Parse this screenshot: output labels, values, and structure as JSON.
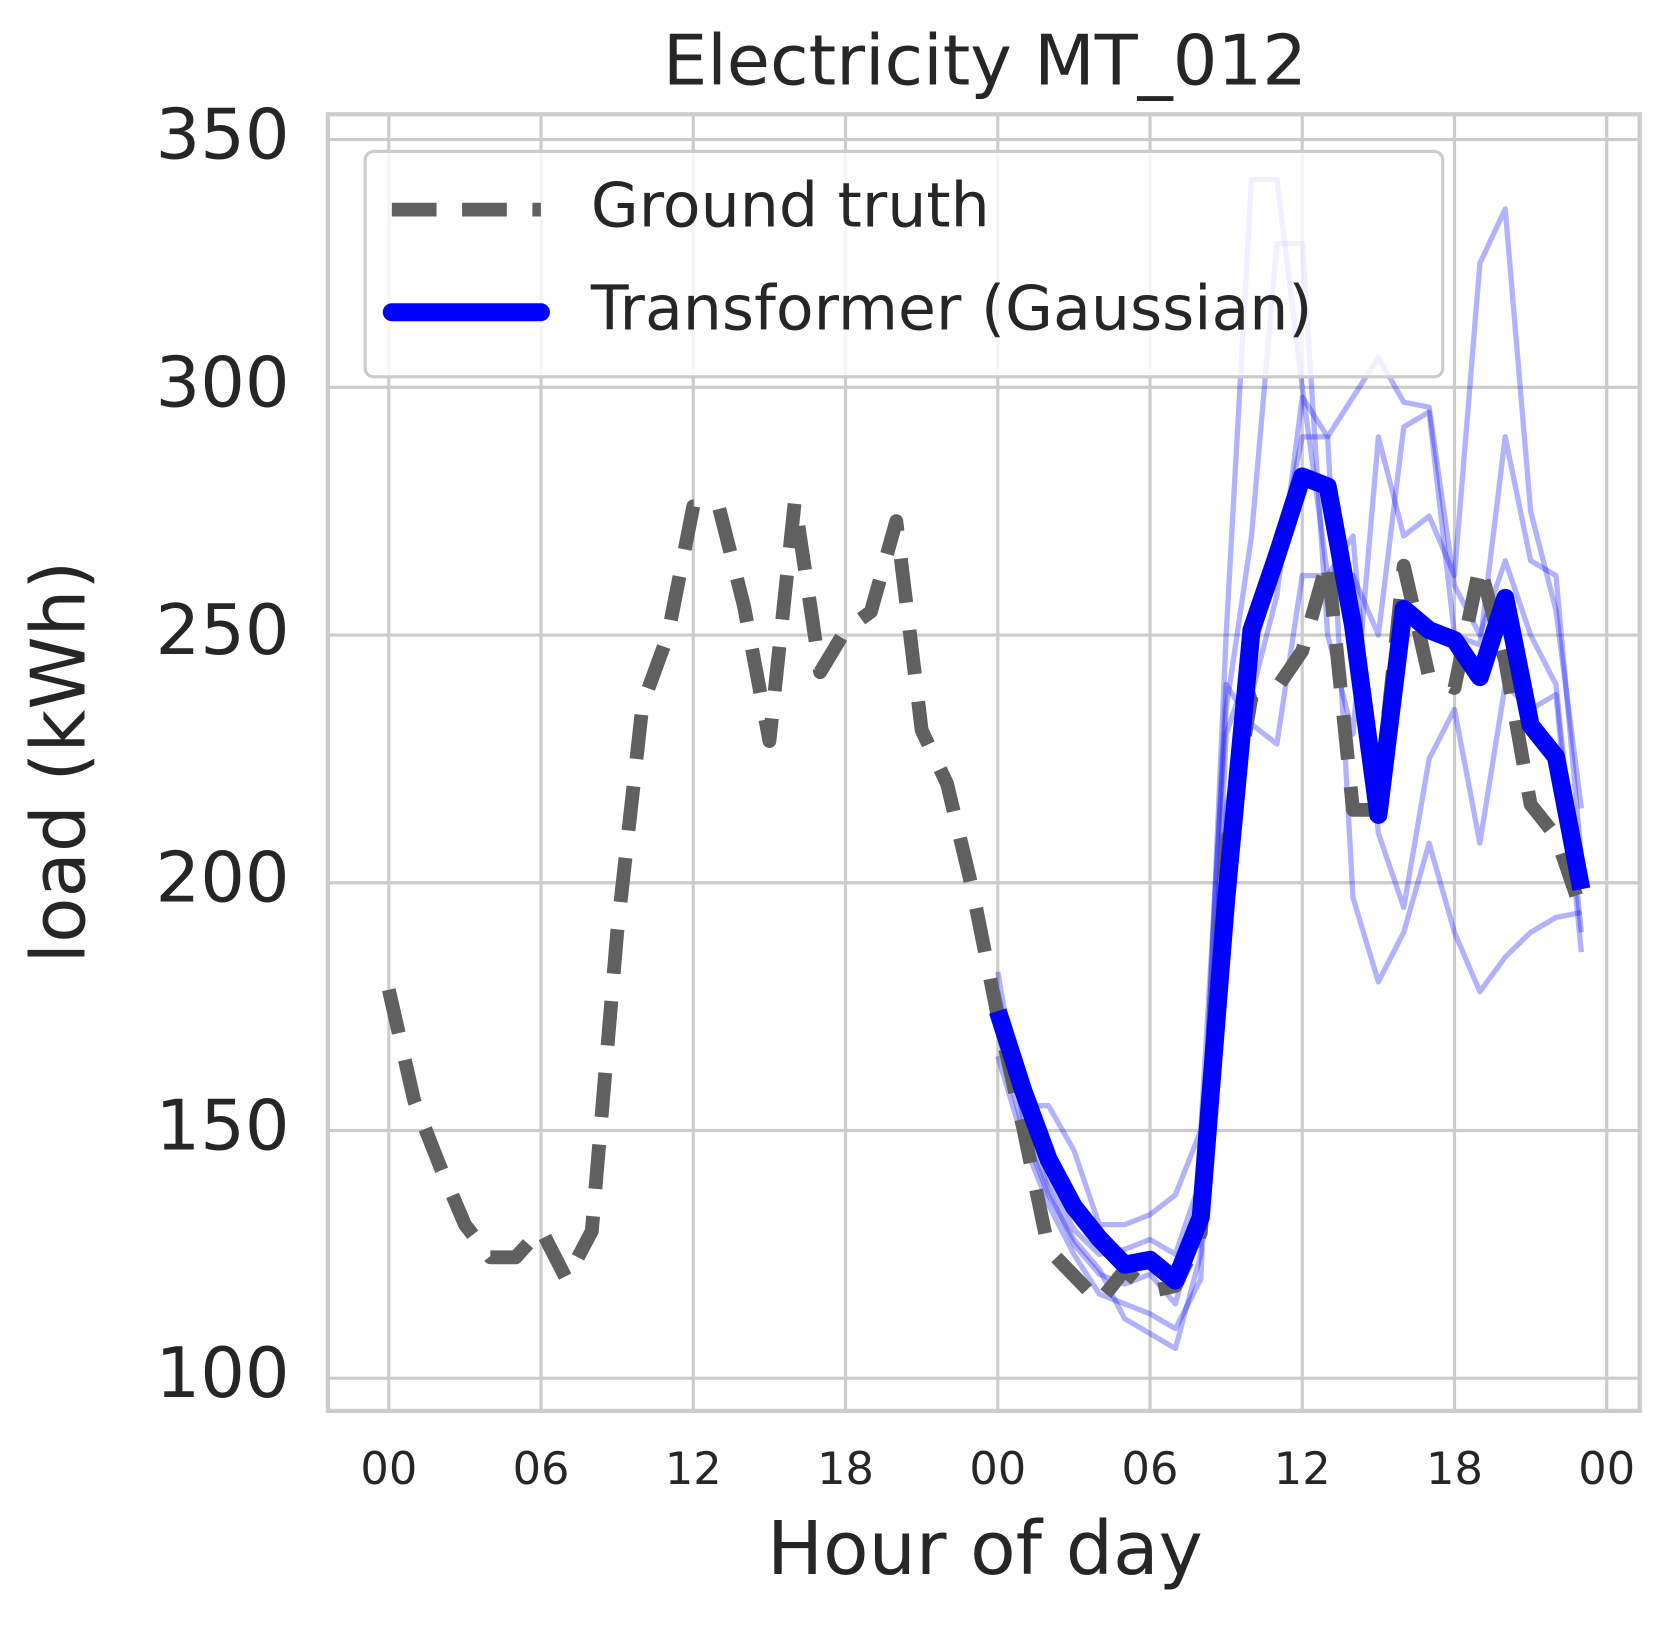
{
  "chart_data": {
    "type": "line",
    "title": "Electricity MT_012",
    "x_label": "Hour of day",
    "y_label": "load (kWh)",
    "xlim": [
      -2.4,
      49.3
    ],
    "ylim": [
      93.4,
      355.1
    ],
    "xticks": [
      {
        "value": 0,
        "label": "00"
      },
      {
        "value": 6,
        "label": "06"
      },
      {
        "value": 12,
        "label": "12"
      },
      {
        "value": 18,
        "label": "18"
      },
      {
        "value": 24,
        "label": "00"
      },
      {
        "value": 30,
        "label": "06"
      },
      {
        "value": 36,
        "label": "12"
      },
      {
        "value": 42,
        "label": "18"
      },
      {
        "value": 48,
        "label": "00"
      }
    ],
    "yticks": [
      100,
      150,
      200,
      250,
      300,
      350
    ],
    "grid": true,
    "legend": "upper left",
    "series": [
      {
        "name": "Ground truth",
        "color": "#606060",
        "style": "dashed",
        "x": [
          0,
          1,
          2,
          3,
          4,
          5,
          6,
          7,
          8,
          9,
          10,
          11,
          12,
          13,
          14,
          15,
          16,
          17,
          18,
          19,
          20,
          21,
          22,
          23,
          24,
          25,
          26,
          27,
          28,
          29,
          30,
          31,
          32,
          33,
          34,
          35,
          36,
          37,
          38,
          39,
          40,
          41,
          42,
          43,
          44,
          45,
          46,
          47
        ],
        "values": [
          178.4,
          156,
          143,
          131,
          124.4,
          124.4,
          130,
          120,
          129.7,
          190,
          236,
          250,
          276,
          276,
          255.8,
          228.6,
          277,
          242.5,
          251,
          254.7,
          273,
          230.8,
          220,
          198.7,
          173,
          150.6,
          126,
          120.7,
          115.4,
          121.8,
          117.5,
          118.6,
          129.3,
          207,
          237.6,
          239.3,
          246.8,
          265,
          214.7,
          214.7,
          264,
          241.5,
          239.3,
          264,
          244.7,
          215.8,
          209.4,
          194.4
        ]
      },
      {
        "name": "Transformer (Gaussian)",
        "color": "#0000ff",
        "style": "solid",
        "x": [
          24,
          25,
          26,
          27,
          28,
          29,
          30,
          31,
          32,
          33,
          34,
          35,
          36,
          37,
          38,
          39,
          40,
          41,
          42,
          43,
          44,
          45,
          46,
          47
        ],
        "values": [
          174.1,
          158.1,
          144.2,
          134.6,
          128.2,
          122.9,
          123.9,
          119.7,
          132.5,
          196.6,
          251,
          266,
          282,
          280,
          252,
          213.7,
          255.3,
          251,
          249,
          241.5,
          257.5,
          231.8,
          225.4,
          198.7
        ]
      },
      {
        "color": "#0000ff",
        "style": "sample",
        "x": [
          24,
          25,
          26,
          27,
          28,
          29,
          30,
          31,
          32,
          33,
          34,
          35,
          36,
          37,
          38,
          39,
          40,
          41,
          42,
          43,
          44,
          45,
          46,
          47
        ],
        "values": [
          182,
          152,
          138,
          127,
          121,
          119,
          121,
          115,
          134,
          250,
          342,
          342,
          300,
          262,
          262,
          250,
          292,
          295,
          250,
          248,
          290,
          265,
          262,
          205
        ]
      },
      {
        "color": "#0000ff",
        "style": "sample",
        "x": [
          24,
          25,
          26,
          27,
          28,
          29,
          30,
          31,
          32,
          33,
          34,
          35,
          36,
          37,
          38,
          39,
          40,
          41,
          42,
          43,
          44,
          45,
          46,
          47
        ],
        "values": [
          178,
          155,
          155,
          146,
          131,
          131,
          133,
          137,
          150,
          235,
          270,
          329,
          329,
          250,
          230,
          290,
          270,
          274,
          262,
          325,
          336,
          275,
          255,
          215
        ]
      },
      {
        "color": "#0000ff",
        "style": "sample",
        "x": [
          24,
          25,
          26,
          27,
          28,
          29,
          30,
          31,
          32,
          33,
          34,
          35,
          36,
          37,
          38,
          39,
          40,
          41,
          42,
          43,
          44,
          45,
          46,
          47
        ],
        "values": [
          170,
          150,
          137,
          128,
          122,
          112,
          109,
          106,
          125,
          215,
          238,
          258,
          298,
          290,
          298,
          306,
          297,
          296,
          260,
          250,
          265,
          250,
          240,
          190
        ]
      },
      {
        "color": "#0000ff",
        "style": "sample",
        "x": [
          24,
          25,
          26,
          27,
          28,
          29,
          30,
          31,
          32,
          33,
          34,
          35,
          36,
          37,
          38,
          39,
          40,
          41,
          42,
          43,
          44,
          45,
          46,
          47
        ],
        "values": [
          165,
          148,
          135,
          125,
          117,
          115,
          113,
          110,
          120,
          230,
          245,
          265,
          290,
          290,
          197,
          180,
          190,
          208,
          190,
          178,
          185,
          190,
          193,
          194
        ]
      },
      {
        "color": "#0000ff",
        "style": "sample",
        "x": [
          24,
          25,
          26,
          27,
          28,
          29,
          30,
          31,
          32,
          33,
          34,
          35,
          36,
          37,
          38,
          39,
          40,
          41,
          42,
          43,
          44,
          45,
          46,
          47
        ],
        "values": [
          175,
          160,
          140,
          130,
          125,
          126,
          128,
          125,
          140,
          240,
          232,
          228,
          262,
          262,
          270,
          210,
          195,
          225,
          235,
          208,
          240,
          235,
          238,
          186
        ]
      }
    ]
  }
}
